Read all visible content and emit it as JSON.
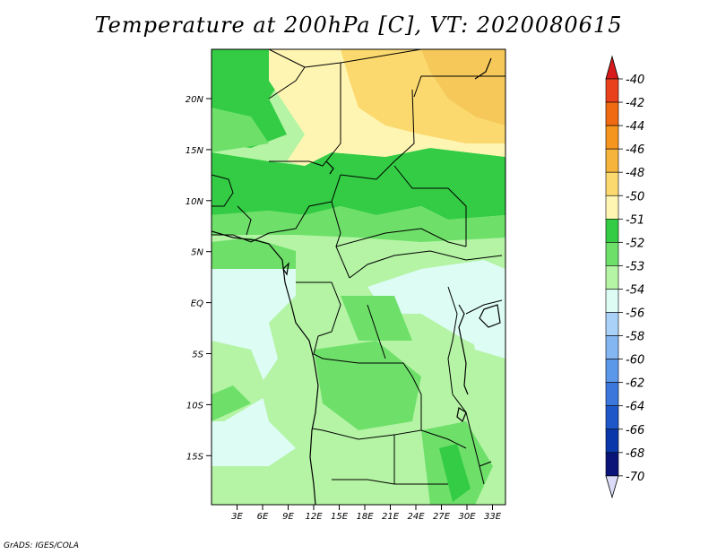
{
  "title": "Temperature at 200hPa [C], VT: 2020080615",
  "credit": "GrADS: IGES/COLA",
  "map": {
    "lat_labels": [
      "20N",
      "15N",
      "10N",
      "5N",
      "EQ",
      "5S",
      "10S",
      "15S"
    ],
    "lon_labels": [
      "3E",
      "6E",
      "9E",
      "12E",
      "15E",
      "18E",
      "21E",
      "24E",
      "27E",
      "30E",
      "33E"
    ]
  },
  "colorbar": {
    "labels": [
      "-40",
      "-42",
      "-44",
      "-46",
      "-48",
      "-50",
      "-51",
      "-52",
      "-53",
      "-54",
      "-56",
      "-58",
      "-60",
      "-62",
      "-64",
      "-66",
      "-68",
      "-70"
    ],
    "colors": [
      "#d7191c",
      "#e8411c",
      "#f06a12",
      "#f5951e",
      "#f6b43c",
      "#fbd96e",
      "#fff5b2",
      "#33cc44",
      "#6ee06a",
      "#b4f4a4",
      "#dcfcf4",
      "#aad2f8",
      "#84b6f2",
      "#5c98ea",
      "#3c78dc",
      "#1e58c8",
      "#0a38aa",
      "#0a1478",
      "#dcdcf8"
    ]
  }
}
